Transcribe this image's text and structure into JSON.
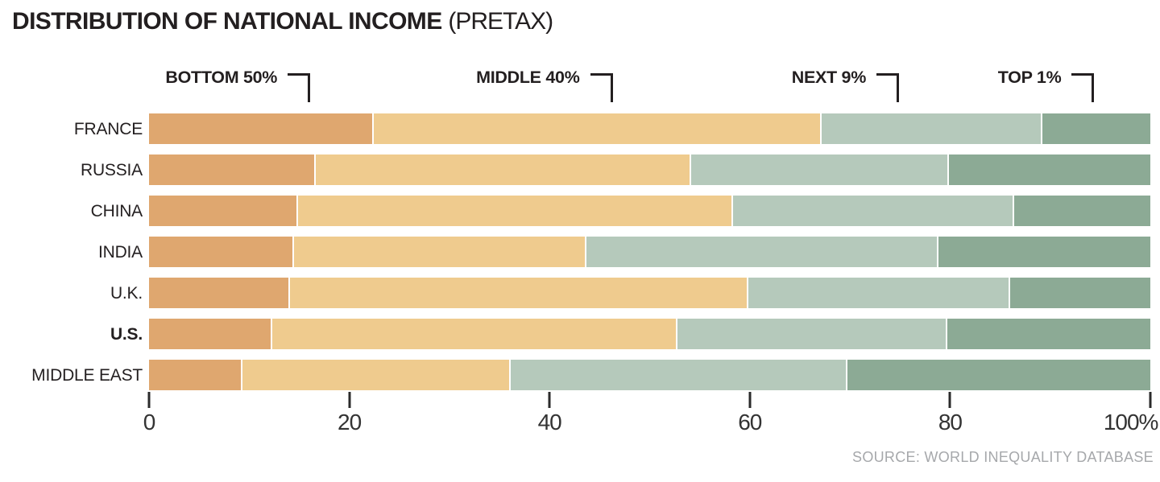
{
  "title": {
    "main": "DISTRIBUTION OF NATIONAL INCOME",
    "qualifier": "(PRETAX)"
  },
  "source": "SOURCE: WORLD INEQUALITY DATABASE",
  "chart_data": {
    "type": "bar",
    "stacked": true,
    "orientation": "horizontal",
    "title": "DISTRIBUTION OF NATIONAL INCOME (PRETAX)",
    "xlabel": "",
    "ylabel": "",
    "xlim": [
      0,
      100
    ],
    "grid": false,
    "legend_position": "top-brackets",
    "categories": [
      "FRANCE",
      "RUSSIA",
      "CHINA",
      "INDIA",
      "U.K.",
      "U.S.",
      "MIDDLE EAST"
    ],
    "highlighted_category": "U.S.",
    "series": [
      {
        "name": "BOTTOM 50%",
        "color": "#dfa76f",
        "values": [
          22.4,
          16.6,
          14.8,
          14.4,
          14.0,
          12.2,
          9.2
        ]
      },
      {
        "name": "MIDDLE 40%",
        "color": "#efcb8e",
        "values": [
          44.8,
          37.5,
          43.5,
          29.2,
          45.8,
          40.5,
          26.8
        ]
      },
      {
        "name": "NEXT 9%",
        "color": "#b5c9bb",
        "values": [
          22.0,
          25.7,
          28.0,
          35.1,
          26.1,
          26.9,
          33.6
        ]
      },
      {
        "name": "TOP 1%",
        "color": "#8caa95",
        "values": [
          10.8,
          20.2,
          13.7,
          21.3,
          14.1,
          20.4,
          30.4
        ]
      }
    ],
    "legend_bracket_positions_pct": [
      16.1,
      46.3,
      74.9,
      94.4
    ],
    "x_ticks": [
      {
        "label": "0",
        "value": 0
      },
      {
        "label": "20",
        "value": 20
      },
      {
        "label": "40",
        "value": 40
      },
      {
        "label": "60",
        "value": 60
      },
      {
        "label": "80",
        "value": 80
      },
      {
        "label": "100%",
        "value": 100
      }
    ]
  }
}
